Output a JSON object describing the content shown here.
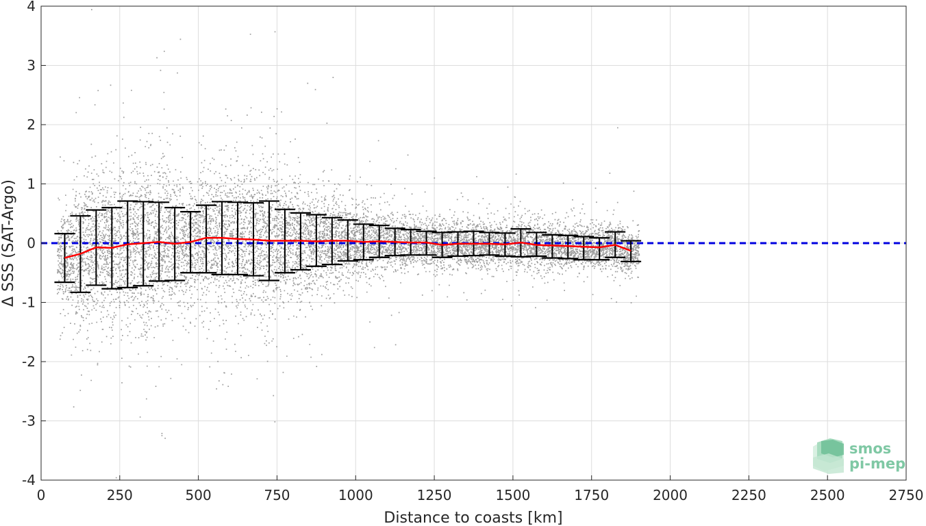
{
  "chart_data": {
    "type": "scatter",
    "title": "",
    "xlabel": "Distance to coasts [km]",
    "ylabel": "Δ SSS (SAT-Argo)",
    "xlim": [
      0,
      2750
    ],
    "ylim": [
      -4,
      4
    ],
    "xticks": [
      0,
      250,
      500,
      750,
      1000,
      1250,
      1500,
      1750,
      2000,
      2250,
      2500,
      2750
    ],
    "yticks": [
      -4,
      -3,
      -2,
      -1,
      0,
      1,
      2,
      3,
      4
    ],
    "xtick_labels": [
      "0",
      "250",
      "500",
      "750",
      "1000",
      "1250",
      "1500",
      "1750",
      "2000",
      "2250",
      "2500",
      "2750"
    ],
    "ytick_labels": [
      "-4",
      "-3",
      "-2",
      "-1",
      "0",
      "1",
      "2",
      "3",
      "4"
    ],
    "grid": true,
    "reference_line": {
      "y": 0,
      "color": "#0000e0",
      "style": "dashed"
    },
    "scatter_color": "#8c8c8c",
    "mean_line_color": "#ff0000",
    "errorbar_color": "#000000",
    "binned_stats": {
      "x": [
        75,
        125,
        175,
        225,
        275,
        325,
        375,
        425,
        475,
        525,
        575,
        625,
        675,
        725,
        775,
        825,
        875,
        925,
        975,
        1025,
        1075,
        1125,
        1175,
        1225,
        1275,
        1325,
        1375,
        1425,
        1475,
        1525,
        1575,
        1625,
        1675,
        1725,
        1775,
        1825,
        1875
      ],
      "mean": [
        -0.25,
        -0.18,
        -0.07,
        -0.08,
        -0.02,
        0.0,
        0.02,
        -0.01,
        0.02,
        0.09,
        0.09,
        0.07,
        0.06,
        0.04,
        0.04,
        0.04,
        0.03,
        0.04,
        0.04,
        0.02,
        0.03,
        0.02,
        0.01,
        0.01,
        -0.03,
        -0.01,
        -0.01,
        -0.01,
        -0.02,
        0.01,
        -0.03,
        -0.04,
        -0.05,
        -0.06,
        -0.07,
        -0.03,
        -0.13
      ],
      "upper": [
        0.16,
        0.46,
        0.56,
        0.6,
        0.71,
        0.7,
        0.69,
        0.6,
        0.53,
        0.64,
        0.7,
        0.69,
        0.68,
        0.71,
        0.57,
        0.51,
        0.48,
        0.43,
        0.39,
        0.32,
        0.3,
        0.25,
        0.23,
        0.2,
        0.18,
        0.19,
        0.2,
        0.18,
        0.17,
        0.24,
        0.18,
        0.14,
        0.13,
        0.11,
        0.09,
        0.19,
        0.04
      ],
      "lower": [
        -0.66,
        -0.83,
        -0.71,
        -0.77,
        -0.75,
        -0.72,
        -0.64,
        -0.63,
        -0.5,
        -0.5,
        -0.53,
        -0.53,
        -0.55,
        -0.63,
        -0.5,
        -0.45,
        -0.39,
        -0.36,
        -0.3,
        -0.28,
        -0.24,
        -0.21,
        -0.2,
        -0.2,
        -0.24,
        -0.22,
        -0.21,
        -0.2,
        -0.22,
        -0.23,
        -0.22,
        -0.25,
        -0.26,
        -0.28,
        -0.28,
        -0.24,
        -0.31
      ]
    }
  },
  "logo": {
    "line1": "smos",
    "line2": "pi-mep"
  }
}
